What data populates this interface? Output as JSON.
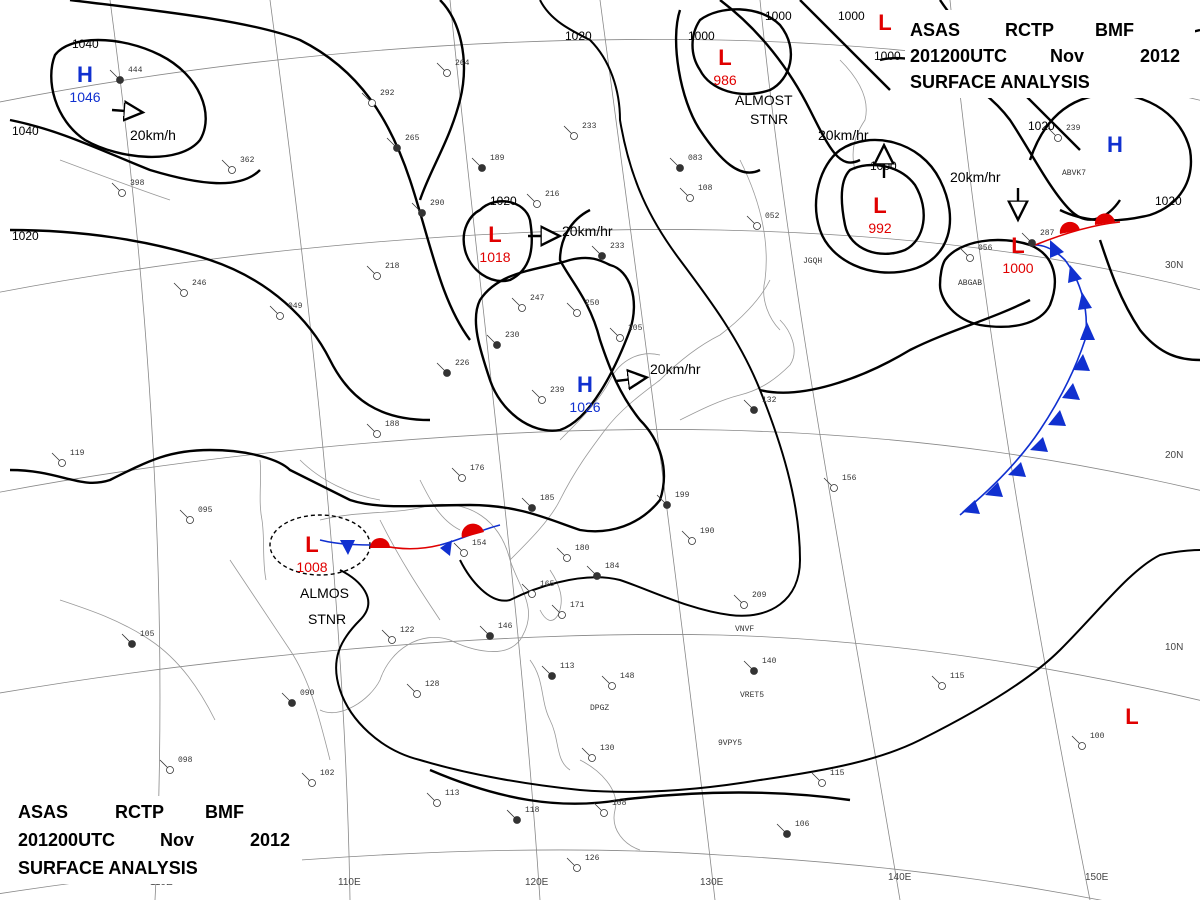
{
  "header_top": {
    "line1": [
      "ASAS",
      "RCTP",
      "BMF"
    ],
    "line2": [
      "201200UTC",
      "Nov",
      "2012"
    ],
    "line3": "SURFACE  ANALYSIS"
  },
  "header_bottom": {
    "line1": [
      "ASAS",
      "RCTP",
      "BMF"
    ],
    "line2": [
      "201200UTC",
      "Nov",
      "2012"
    ],
    "line3": "SURFACE  ANALYSIS"
  },
  "longitude_labels": [
    "110E",
    "120E",
    "130E",
    "140E",
    "150E"
  ],
  "latitude_labels": [
    "30N",
    "20N",
    "10N"
  ],
  "isobar_labels": [
    "1040",
    "1040",
    "1020",
    "1020",
    "1020",
    "1020",
    "1000",
    "1000",
    "1000",
    "1000",
    "1000",
    "1020"
  ],
  "pressure_centers": [
    {
      "type": "H",
      "value": "1046"
    },
    {
      "type": "L",
      "value": "1018"
    },
    {
      "type": "H",
      "value": "1026"
    },
    {
      "type": "L",
      "value": "986"
    },
    {
      "type": "L",
      "value": "992"
    },
    {
      "type": "L",
      "value": "1000"
    },
    {
      "type": "L",
      "value": "1008"
    },
    {
      "type": "H",
      "value": ""
    },
    {
      "type": "L",
      "value": ""
    },
    {
      "type": "L",
      "value": ""
    }
  ],
  "motion_labels": [
    "20km/h",
    "20km/hr",
    "20km/hr",
    "20km/hr",
    "20km/hr"
  ],
  "notes": [
    {
      "line1": "ALMOST",
      "line2": "STNR"
    },
    {
      "line1": "ALMOS",
      "line2": "STNR"
    }
  ],
  "station_plots": [
    "444",
    "362",
    "398",
    "265",
    "292",
    "264",
    "189",
    "233",
    "216",
    "233",
    "247",
    "250",
    "230",
    "205",
    "239",
    "226",
    "188",
    "176",
    "185",
    "154",
    "180",
    "184",
    "165",
    "171",
    "146",
    "122",
    "128",
    "090",
    "102",
    "113",
    "118",
    "108",
    "126",
    "113",
    "148",
    "130",
    "199",
    "190",
    "209",
    "140",
    "156",
    "115",
    "106",
    "100",
    "115",
    "132",
    "052",
    "108",
    "083",
    "095",
    "119",
    "105",
    "098",
    "218",
    "290",
    "246",
    "239",
    "287",
    "056",
    "049"
  ],
  "station_ids": [
    "JGQH",
    "ABGAB",
    "VNVF",
    "VRET5",
    "9VPY5",
    "DPGZ",
    "ABVK7"
  ],
  "colors": {
    "high": "#1030d0",
    "low": "#e00000",
    "warm_front": "#e00000",
    "cold_front": "#1030d0",
    "isobar": "#000000",
    "grid": "#888888"
  }
}
